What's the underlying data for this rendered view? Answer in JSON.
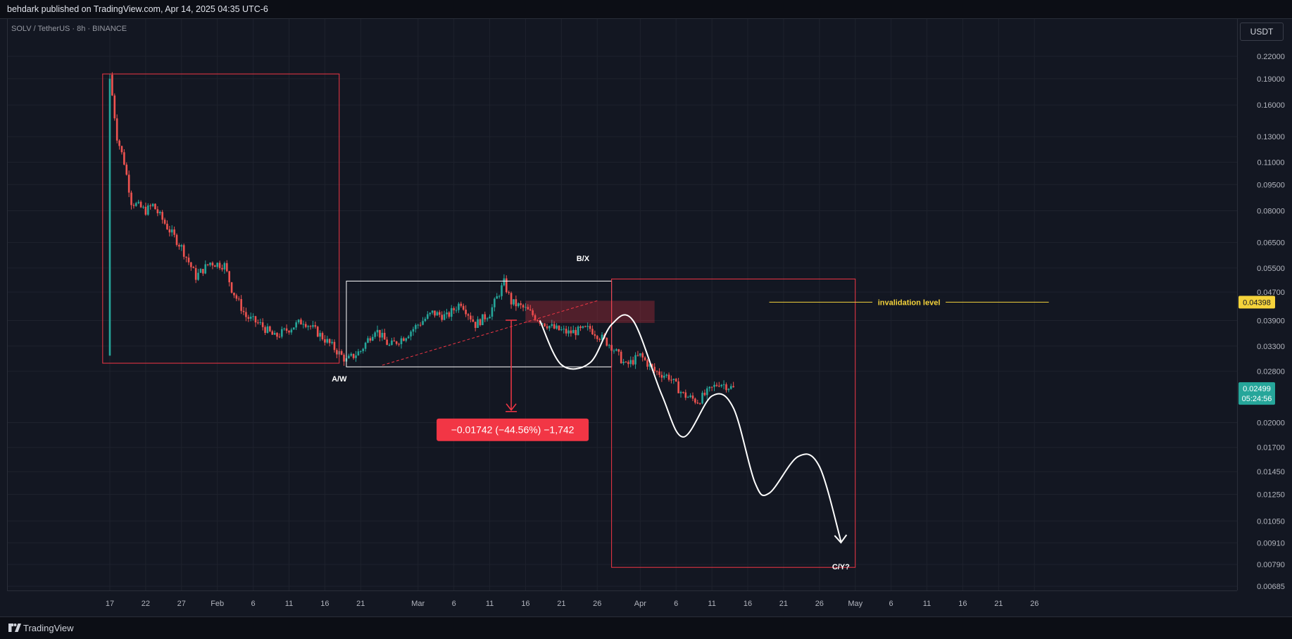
{
  "header": {
    "published": "behdark published on TradingView.com, Apr 14, 2025 04:35 UTC-6"
  },
  "legend": {
    "symbol": "SOLV / TetherUS · 8h · BINANCE"
  },
  "currency_button": "USDT",
  "footer": {
    "brand": "TradingView"
  },
  "colors": {
    "bg": "#131722",
    "up": "#26a69a",
    "down": "#ef5350",
    "box_red": "#f23645",
    "box_white": "#ffffff",
    "invalidation": "#f5d33b",
    "price_tag": "#26a69a",
    "measure": "#f23645"
  },
  "chart_data": {
    "type": "candlestick",
    "symbol": "SOLV / TetherUS",
    "interval": "8h",
    "exchange": "BINANCE",
    "y_scale": "log",
    "ylim": [
      0.00685,
      0.25
    ],
    "y_ticks": [
      "0.22000",
      "0.19000",
      "0.16000",
      "0.13000",
      "0.11000",
      "0.09500",
      "0.08000",
      "0.06500",
      "0.05500",
      "0.04700",
      "0.03900",
      "0.03300",
      "0.02800",
      "0.02000",
      "0.01700",
      "0.01450",
      "0.01250",
      "0.01050",
      "0.00910",
      "0.00790",
      "0.00685"
    ],
    "x_ticks": [
      {
        "label": "17",
        "date": "2025-01-17"
      },
      {
        "label": "22",
        "date": "2025-01-22"
      },
      {
        "label": "27",
        "date": "2025-01-27"
      },
      {
        "label": "Feb",
        "date": "2025-02-01"
      },
      {
        "label": "6",
        "date": "2025-02-06"
      },
      {
        "label": "11",
        "date": "2025-02-11"
      },
      {
        "label": "16",
        "date": "2025-02-16"
      },
      {
        "label": "21",
        "date": "2025-02-21"
      },
      {
        "label": "Mar",
        "date": "2025-03-01"
      },
      {
        "label": "6",
        "date": "2025-03-06"
      },
      {
        "label": "11",
        "date": "2025-03-11"
      },
      {
        "label": "16",
        "date": "2025-03-16"
      },
      {
        "label": "21",
        "date": "2025-03-21"
      },
      {
        "label": "26",
        "date": "2025-03-26"
      },
      {
        "label": "Apr",
        "date": "2025-04-01"
      },
      {
        "label": "6",
        "date": "2025-04-06"
      },
      {
        "label": "11",
        "date": "2025-04-11"
      },
      {
        "label": "16",
        "date": "2025-04-16"
      },
      {
        "label": "21",
        "date": "2025-04-21"
      },
      {
        "label": "26",
        "date": "2025-04-26"
      },
      {
        "label": "May",
        "date": "2025-05-01"
      },
      {
        "label": "6",
        "date": "2025-05-06"
      },
      {
        "label": "11",
        "date": "2025-05-11"
      },
      {
        "label": "16",
        "date": "2025-05-16"
      },
      {
        "label": "21",
        "date": "2025-05-21"
      },
      {
        "label": "26",
        "date": "2025-05-26"
      }
    ],
    "price_path": [
      [
        "2025-01-17",
        0.031
      ],
      [
        "2025-01-17",
        0.195
      ],
      [
        "2025-01-18",
        0.13
      ],
      [
        "2025-01-19",
        0.11
      ],
      [
        "2025-01-20",
        0.085
      ],
      [
        "2025-01-22",
        0.08
      ],
      [
        "2025-01-23",
        0.083
      ],
      [
        "2025-01-25",
        0.072
      ],
      [
        "2025-01-27",
        0.063
      ],
      [
        "2025-01-29",
        0.052
      ],
      [
        "2025-01-31",
        0.057
      ],
      [
        "2025-02-02",
        0.056
      ],
      [
        "2025-02-03",
        0.048
      ],
      [
        "2025-02-05",
        0.04
      ],
      [
        "2025-02-07",
        0.038
      ],
      [
        "2025-02-09",
        0.035
      ],
      [
        "2025-02-11",
        0.037
      ],
      [
        "2025-02-13",
        0.039
      ],
      [
        "2025-02-15",
        0.036
      ],
      [
        "2025-02-17",
        0.033
      ],
      [
        "2025-02-19",
        0.03
      ],
      [
        "2025-02-21",
        0.032
      ],
      [
        "2025-02-23",
        0.037
      ],
      [
        "2025-02-25",
        0.033
      ],
      [
        "2025-02-27",
        0.035
      ],
      [
        "2025-03-01",
        0.038
      ],
      [
        "2025-03-03",
        0.041
      ],
      [
        "2025-03-05",
        0.04
      ],
      [
        "2025-03-07",
        0.044
      ],
      [
        "2025-03-09",
        0.038
      ],
      [
        "2025-03-11",
        0.041
      ],
      [
        "2025-03-13",
        0.05
      ],
      [
        "2025-03-14",
        0.044
      ],
      [
        "2025-03-16",
        0.042
      ],
      [
        "2025-03-18",
        0.039
      ],
      [
        "2025-03-20",
        0.037
      ],
      [
        "2025-03-22",
        0.036
      ],
      [
        "2025-03-25",
        0.037
      ],
      [
        "2025-03-28",
        0.033
      ],
      [
        "2025-03-30",
        0.029
      ],
      [
        "2025-04-01",
        0.031
      ],
      [
        "2025-04-03",
        0.028
      ],
      [
        "2025-04-05",
        0.027
      ],
      [
        "2025-04-07",
        0.024
      ],
      [
        "2025-04-09",
        0.023
      ],
      [
        "2025-04-11",
        0.025
      ],
      [
        "2025-04-12",
        0.026
      ],
      [
        "2025-04-14",
        0.02499
      ]
    ],
    "last_price": "0.02499",
    "countdown": "05:24:56",
    "annotations": {
      "labels": [
        {
          "text": "A/W",
          "date": "2025-02-18",
          "price": 0.0262
        },
        {
          "text": "B/X",
          "date": "2025-03-24",
          "price": 0.0575
        },
        {
          "text": "C/Y?",
          "date": "2025-04-29",
          "price": 0.00765
        }
      ],
      "invalidation": {
        "text": "invalidation level",
        "price": 0.04398,
        "tag": "0.04398",
        "from": "2025-04-19",
        "to": "2025-05-28"
      },
      "boxes": [
        {
          "color": "red",
          "from": "2025-01-16",
          "to": "2025-02-18",
          "top": 0.196,
          "bottom": 0.0295
        },
        {
          "color": "white",
          "from": "2025-02-19",
          "to": "2025-03-28",
          "top": 0.0505,
          "bottom": 0.0288
        },
        {
          "color": "red",
          "from": "2025-03-28",
          "to": "2025-05-01",
          "top": 0.0512,
          "bottom": 0.00775
        }
      ],
      "zone": {
        "from": "2025-03-16",
        "to": "2025-04-03",
        "top": 0.0444,
        "bottom": 0.0384
      },
      "trendline": {
        "from": [
          "2025-02-24",
          0.0291
        ],
        "to": [
          "2025-03-26",
          0.0444
        ]
      },
      "measure": {
        "date": "2025-03-14",
        "from": 0.0391,
        "to": 0.0217,
        "label": "−0.01742 (−44.56%) −1,742"
      },
      "projection": [
        [
          "2025-03-18",
          0.039
        ],
        [
          "2025-03-21",
          0.0292
        ],
        [
          "2025-03-25",
          0.0296
        ],
        [
          "2025-03-28",
          0.038
        ],
        [
          "2025-03-31",
          0.039
        ],
        [
          "2025-04-04",
          0.024
        ],
        [
          "2025-04-07",
          0.0182
        ],
        [
          "2025-04-11",
          0.0238
        ],
        [
          "2025-04-14",
          0.022
        ],
        [
          "2025-04-17",
          0.0135
        ],
        [
          "2025-04-19",
          0.0126
        ],
        [
          "2025-04-23",
          0.016
        ],
        [
          "2025-04-26",
          0.015
        ],
        [
          "2025-04-29",
          0.0092
        ]
      ]
    }
  }
}
